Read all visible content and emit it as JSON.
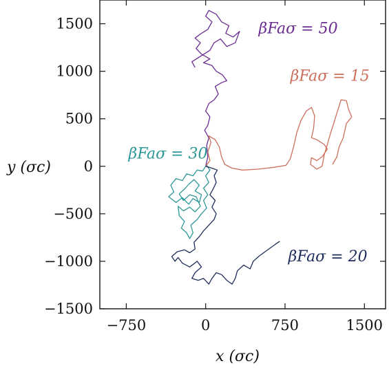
{
  "chart_data": {
    "type": "line",
    "title": "",
    "xlabel": "x (σc)",
    "ylabel": "y (σc)",
    "xlim": [
      -1000,
      1700
    ],
    "ylim": [
      -1500,
      1750
    ],
    "xticks": [
      {
        "value": -750,
        "label": "−750"
      },
      {
        "value": 0,
        "label": "0"
      },
      {
        "value": 750,
        "label": "750"
      },
      {
        "value": 1500,
        "label": "1500"
      }
    ],
    "yticks": [
      {
        "value": 1500,
        "label": "1500"
      },
      {
        "value": 1000,
        "label": "1000"
      },
      {
        "value": 500,
        "label": "500"
      },
      {
        "value": 0,
        "label": "0"
      },
      {
        "value": -500,
        "label": "−500"
      },
      {
        "value": -1000,
        "label": "−1000"
      },
      {
        "value": -1500,
        "label": "−1500"
      }
    ],
    "grid": false,
    "series": [
      {
        "name": "βFaσ = 50",
        "color": "#6a2c91",
        "label_pos": [
          500,
          1400
        ],
        "points": [
          [
            0,
            0
          ],
          [
            20,
            100
          ],
          [
            10,
            220
          ],
          [
            30,
            300
          ],
          [
            -10,
            380
          ],
          [
            20,
            430
          ],
          [
            40,
            520
          ],
          [
            0,
            580
          ],
          [
            30,
            660
          ],
          [
            80,
            700
          ],
          [
            120,
            760
          ],
          [
            90,
            840
          ],
          [
            150,
            880
          ],
          [
            200,
            900
          ],
          [
            160,
            960
          ],
          [
            100,
            1000
          ],
          [
            60,
            1060
          ],
          [
            -20,
            1090
          ],
          [
            40,
            1130
          ],
          [
            -40,
            1180
          ],
          [
            -90,
            1240
          ],
          [
            -50,
            1300
          ],
          [
            -100,
            1350
          ],
          [
            -40,
            1400
          ],
          [
            20,
            1440
          ],
          [
            60,
            1520
          ],
          [
            0,
            1580
          ],
          [
            30,
            1640
          ],
          [
            100,
            1600
          ],
          [
            150,
            1520
          ],
          [
            220,
            1480
          ],
          [
            190,
            1400
          ],
          [
            260,
            1360
          ],
          [
            320,
            1420
          ],
          [
            280,
            1300
          ],
          [
            200,
            1260
          ],
          [
            140,
            1340
          ],
          [
            80,
            1300
          ],
          [
            40,
            1220
          ],
          [
            -60,
            1150
          ],
          [
            -130,
            1100
          ],
          [
            -100,
            1040
          ]
        ]
      },
      {
        "name": "βFaσ = 15",
        "color": "#cc6f5b",
        "label_pos": [
          800,
          900
        ],
        "points": [
          [
            0,
            0
          ],
          [
            40,
            60
          ],
          [
            20,
            150
          ],
          [
            50,
            250
          ],
          [
            30,
            320
          ],
          [
            90,
            280
          ],
          [
            130,
            200
          ],
          [
            150,
            100
          ],
          [
            180,
            20
          ],
          [
            250,
            -20
          ],
          [
            350,
            -40
          ],
          [
            500,
            -30
          ],
          [
            650,
            -10
          ],
          [
            760,
            10
          ],
          [
            800,
            80
          ],
          [
            830,
            200
          ],
          [
            860,
            350
          ],
          [
            900,
            480
          ],
          [
            950,
            580
          ],
          [
            1000,
            620
          ],
          [
            1030,
            530
          ],
          [
            1020,
            400
          ],
          [
            1000,
            300
          ],
          [
            1050,
            280
          ],
          [
            1120,
            230
          ],
          [
            1150,
            180
          ],
          [
            1100,
            100
          ],
          [
            1050,
            60
          ],
          [
            1000,
            90
          ],
          [
            990,
            20
          ],
          [
            1050,
            -30
          ],
          [
            1100,
            0
          ],
          [
            1120,
            120
          ],
          [
            1150,
            230
          ],
          [
            1180,
            350
          ],
          [
            1210,
            450
          ],
          [
            1240,
            560
          ],
          [
            1280,
            700
          ],
          [
            1330,
            690
          ],
          [
            1350,
            600
          ],
          [
            1380,
            520
          ],
          [
            1330,
            450
          ],
          [
            1300,
            300
          ],
          [
            1260,
            200
          ],
          [
            1240,
            100
          ],
          [
            1200,
            20
          ]
        ]
      },
      {
        "name": "βFaσ = 30",
        "color": "#2e9797",
        "label_pos": [
          -730,
          80
        ],
        "points": [
          [
            0,
            0
          ],
          [
            -30,
            -50
          ],
          [
            -80,
            -40
          ],
          [
            -120,
            -100
          ],
          [
            -180,
            -80
          ],
          [
            -220,
            -150
          ],
          [
            -280,
            -130
          ],
          [
            -330,
            -200
          ],
          [
            -300,
            -270
          ],
          [
            -350,
            -320
          ],
          [
            -280,
            -380
          ],
          [
            -220,
            -330
          ],
          [
            -160,
            -400
          ],
          [
            -120,
            -340
          ],
          [
            -60,
            -380
          ],
          [
            -40,
            -300
          ],
          [
            -100,
            -260
          ],
          [
            -60,
            -200
          ],
          [
            -110,
            -140
          ],
          [
            -160,
            -190
          ],
          [
            -200,
            -240
          ],
          [
            -250,
            -290
          ],
          [
            -210,
            -360
          ],
          [
            -150,
            -300
          ],
          [
            -90,
            -320
          ],
          [
            -50,
            -420
          ],
          [
            -100,
            -480
          ],
          [
            -150,
            -430
          ],
          [
            -210,
            -470
          ],
          [
            -260,
            -420
          ],
          [
            -250,
            -520
          ],
          [
            -200,
            -580
          ],
          [
            -230,
            -650
          ],
          [
            -180,
            -700
          ],
          [
            -150,
            -760
          ],
          [
            -120,
            -700
          ],
          [
            -140,
            -620
          ],
          [
            -80,
            -560
          ],
          [
            -40,
            -500
          ],
          [
            10,
            -440
          ],
          [
            -20,
            -360
          ],
          [
            20,
            -300
          ],
          [
            -20,
            -230
          ],
          [
            30,
            -170
          ],
          [
            0,
            -100
          ],
          [
            40,
            -40
          ],
          [
            10,
            10
          ]
        ]
      },
      {
        "name": "βFaσ = 20",
        "color": "#1e2d5a",
        "label_pos": [
          780,
          -1000
        ],
        "points": [
          [
            0,
            0
          ],
          [
            60,
            -20
          ],
          [
            110,
            -40
          ],
          [
            80,
            -100
          ],
          [
            100,
            -170
          ],
          [
            70,
            -240
          ],
          [
            40,
            -300
          ],
          [
            90,
            -360
          ],
          [
            60,
            -430
          ],
          [
            100,
            -500
          ],
          [
            80,
            -560
          ],
          [
            30,
            -620
          ],
          [
            -20,
            -680
          ],
          [
            -60,
            -740
          ],
          [
            -110,
            -800
          ],
          [
            -100,
            -870
          ],
          [
            -150,
            -910
          ],
          [
            -200,
            -880
          ],
          [
            -270,
            -900
          ],
          [
            -320,
            -950
          ],
          [
            -290,
            -1000
          ],
          [
            -260,
            -960
          ],
          [
            -220,
            -1020
          ],
          [
            -150,
            -1060
          ],
          [
            -80,
            -1000
          ],
          [
            -40,
            -1060
          ],
          [
            -100,
            -1120
          ],
          [
            -130,
            -1180
          ],
          [
            -70,
            -1200
          ],
          [
            -20,
            -1180
          ],
          [
            30,
            -1240
          ],
          [
            60,
            -1180
          ],
          [
            100,
            -1120
          ],
          [
            150,
            -1140
          ],
          [
            200,
            -1200
          ],
          [
            250,
            -1240
          ],
          [
            280,
            -1180
          ],
          [
            300,
            -1100
          ],
          [
            360,
            -1040
          ],
          [
            420,
            -1080
          ],
          [
            450,
            -1000
          ],
          [
            500,
            -950
          ],
          [
            560,
            -900
          ],
          [
            610,
            -860
          ],
          [
            660,
            -820
          ],
          [
            700,
            -790
          ]
        ]
      }
    ]
  }
}
